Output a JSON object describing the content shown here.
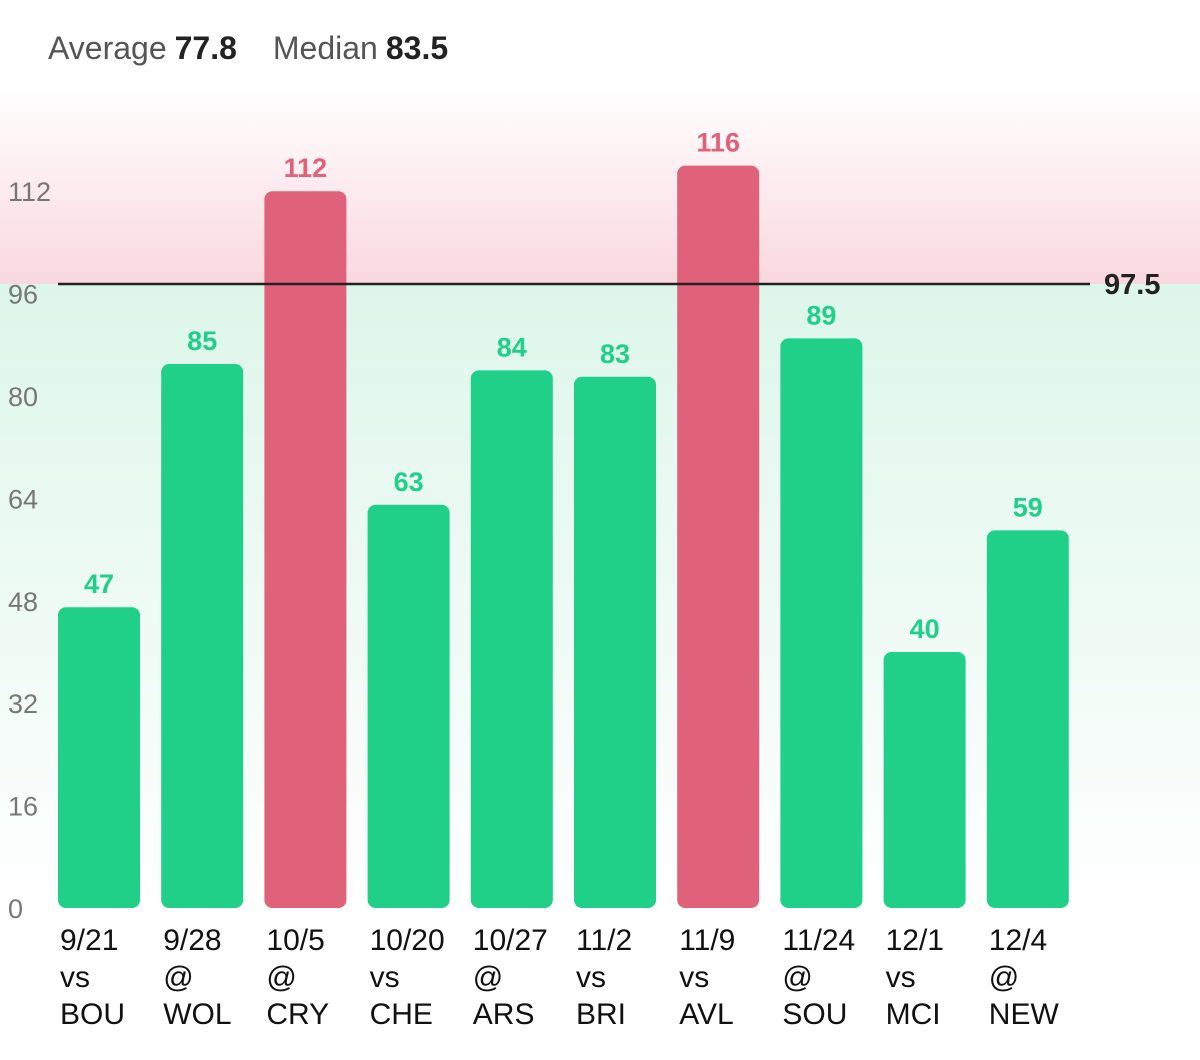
{
  "stats": {
    "average_label": "Average",
    "average_value": "77.8",
    "median_label": "Median",
    "median_value": "83.5"
  },
  "colors": {
    "below_threshold": "#20cf88",
    "above_threshold": "#e0627a",
    "reference_line": "#222222",
    "zone_above": "#f9d8de",
    "zone_below": "#ddf6ea"
  },
  "chart_data": {
    "type": "bar",
    "categories": [
      [
        "9/21",
        "vs",
        "BOU"
      ],
      [
        "9/28",
        "@",
        "WOL"
      ],
      [
        "10/5",
        "@",
        "CRY"
      ],
      [
        "10/20",
        "vs",
        "CHE"
      ],
      [
        "10/27",
        "@",
        "ARS"
      ],
      [
        "11/2",
        "vs",
        "BRI"
      ],
      [
        "11/9",
        "vs",
        "AVL"
      ],
      [
        "11/24",
        "@",
        "SOU"
      ],
      [
        "12/1",
        "vs",
        "MCI"
      ],
      [
        "12/4",
        "@",
        "NEW"
      ]
    ],
    "values": [
      47,
      85,
      112,
      63,
      84,
      83,
      116,
      89,
      40,
      59
    ],
    "reference_line": {
      "value": 97.5,
      "label": "97.5"
    },
    "yticks": [
      0,
      16,
      32,
      48,
      64,
      80,
      96,
      112
    ],
    "ylim": [
      0,
      124
    ],
    "grid": false,
    "title": "",
    "xlabel": "",
    "ylabel": ""
  }
}
